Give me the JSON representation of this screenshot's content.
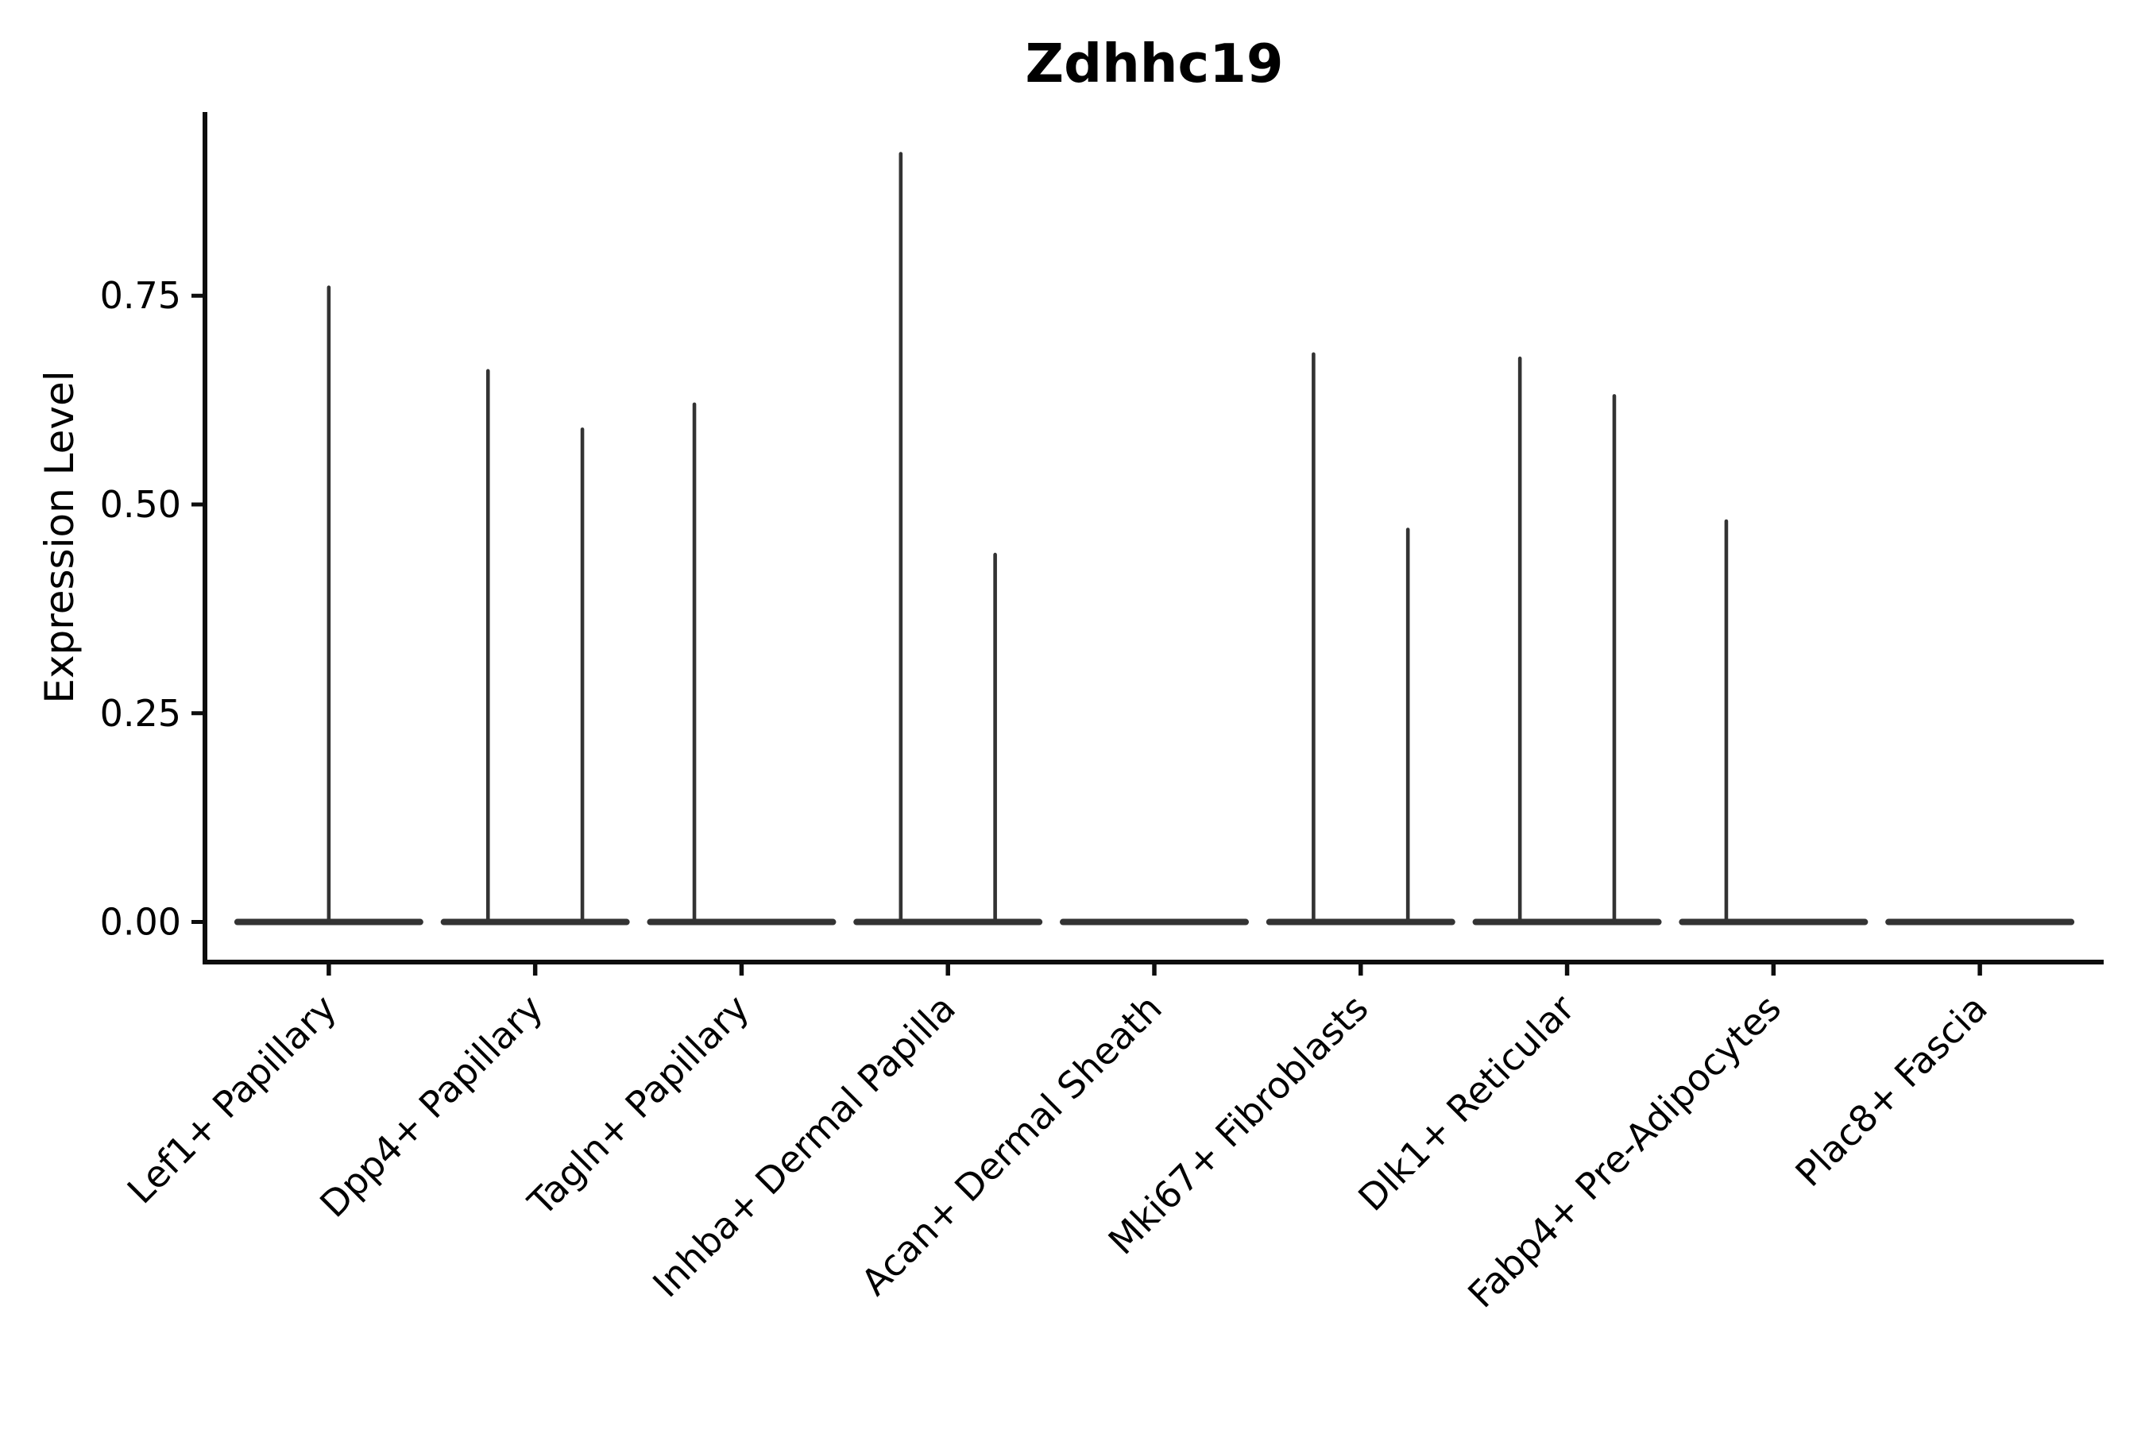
{
  "figure": {
    "background": "#ffffff"
  },
  "chart_data": {
    "type": "violin",
    "title": "Zdhhc19",
    "xlabel": "",
    "ylabel": "Expression Level",
    "ylim": [
      -0.048,
      0.97
    ],
    "yticks": [
      0,
      0.25,
      0.5,
      0.75
    ],
    "ytick_labels": [
      "0.00",
      "0.25",
      "0.50",
      "0.75"
    ],
    "x_tick_rotation": 45,
    "grid": false,
    "legend": false,
    "spines": "left-bottom",
    "categories": [
      "Lef1+ Papillary",
      "Dpp4+ Papillary",
      "Tagln+ Papillary",
      "Inhba+ Dermal Papilla",
      "Acan+ Dermal Sheath",
      "Mki67+ Fibroblasts",
      "Dlk1+ Reticular",
      "Fabp4+ Pre-Adipocytes",
      "Plac8+ Fascia"
    ],
    "violins": [
      {
        "category": "Lef1+ Papillary",
        "baseline": 0,
        "spikes": [
          {
            "pos": "center",
            "max": 0.76
          }
        ]
      },
      {
        "category": "Dpp4+ Papillary",
        "baseline": 0,
        "spikes": [
          {
            "pos": "left",
            "max": 0.66
          },
          {
            "pos": "right",
            "max": 0.59
          }
        ]
      },
      {
        "category": "Tagln+ Papillary",
        "baseline": 0,
        "spikes": [
          {
            "pos": "left",
            "max": 0.62
          }
        ]
      },
      {
        "category": "Inhba+ Dermal Papilla",
        "baseline": 0,
        "spikes": [
          {
            "pos": "left",
            "max": 0.92
          },
          {
            "pos": "right",
            "max": 0.44
          }
        ]
      },
      {
        "category": "Acan+ Dermal Sheath",
        "baseline": 0,
        "spikes": []
      },
      {
        "category": "Mki67+ Fibroblasts",
        "baseline": 0,
        "spikes": [
          {
            "pos": "left",
            "max": 0.68
          },
          {
            "pos": "right",
            "max": 0.47
          }
        ]
      },
      {
        "category": "Dlk1+ Reticular",
        "baseline": 0,
        "spikes": [
          {
            "pos": "left",
            "max": 0.675
          },
          {
            "pos": "right",
            "max": 0.63
          }
        ]
      },
      {
        "category": "Fabp4+ Pre-Adipocytes",
        "baseline": 0,
        "spikes": [
          {
            "pos": "left",
            "max": 0.48
          }
        ]
      },
      {
        "category": "Plac8+ Fascia",
        "baseline": 0,
        "spikes": []
      }
    ]
  },
  "style": {
    "violin_color": "#333333",
    "axis_color": "#0d0d0d",
    "text_color": "#000000",
    "title_color": "#000000",
    "background": "#ffffff"
  }
}
